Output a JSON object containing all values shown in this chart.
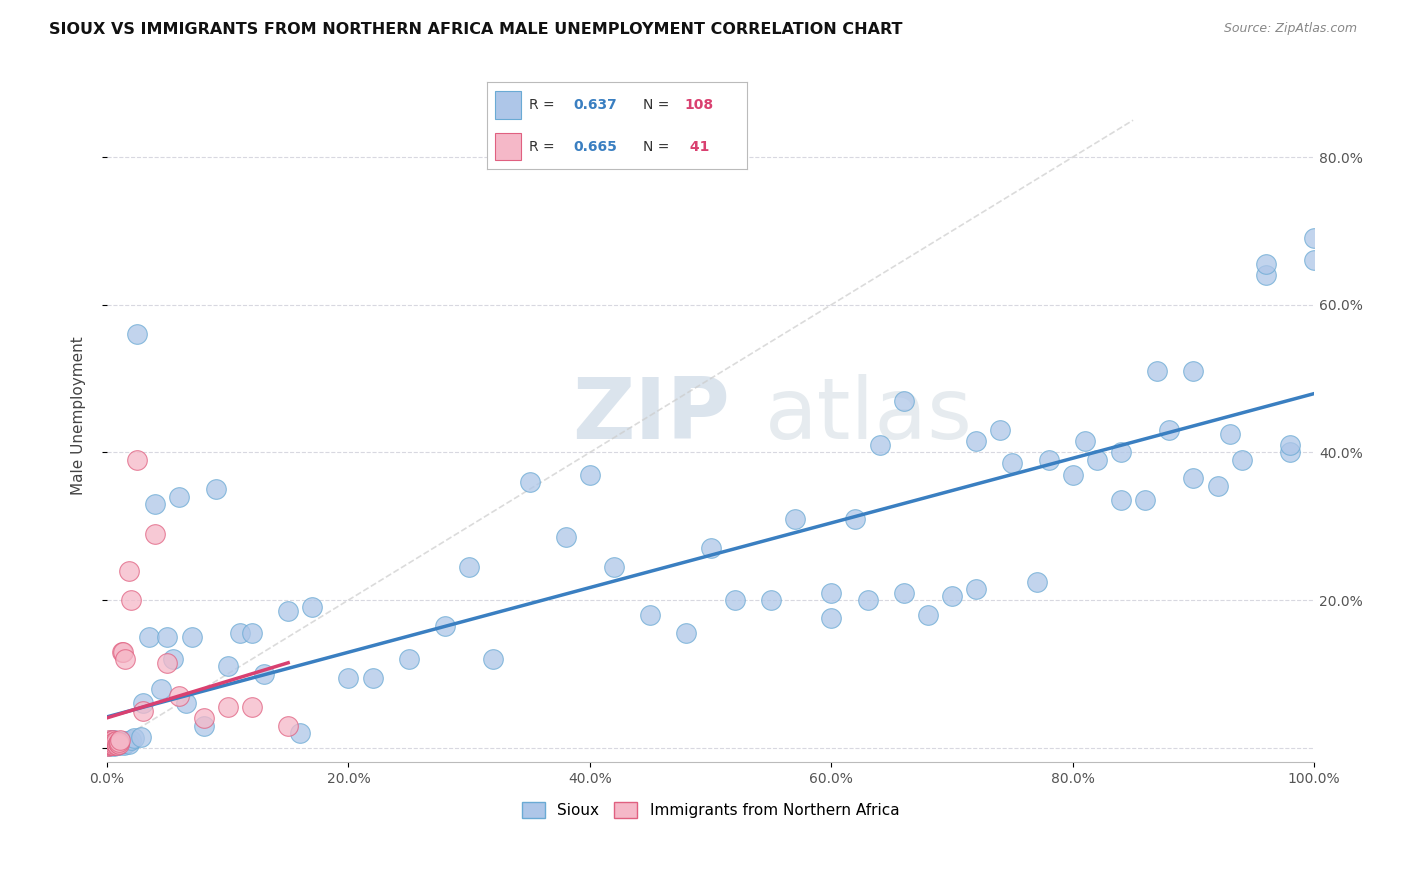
{
  "title": "SIOUX VS IMMIGRANTS FROM NORTHERN AFRICA MALE UNEMPLOYMENT CORRELATION CHART",
  "source": "Source: ZipAtlas.com",
  "ylabel": "Male Unemployment",
  "xlim": [
    0,
    1.0
  ],
  "ylim": [
    -0.02,
    0.92
  ],
  "color_sioux_fill": "#aec6e8",
  "color_sioux_edge": "#6aaad4",
  "color_immig_fill": "#f5b8c8",
  "color_immig_edge": "#e06080",
  "color_line_sioux": "#3a7fc1",
  "color_line_immig": "#d94070",
  "color_diag": "#cccccc",
  "watermark_color": "#d0dce8",
  "background_color": "#ffffff",
  "grid_color": "#d8d8e0",
  "sioux_x": [
    0.001,
    0.001,
    0.001,
    0.002,
    0.002,
    0.002,
    0.002,
    0.003,
    0.003,
    0.003,
    0.003,
    0.004,
    0.004,
    0.004,
    0.005,
    0.005,
    0.005,
    0.006,
    0.006,
    0.006,
    0.007,
    0.007,
    0.008,
    0.008,
    0.009,
    0.009,
    0.01,
    0.01,
    0.011,
    0.012,
    0.013,
    0.014,
    0.015,
    0.016,
    0.017,
    0.018,
    0.02,
    0.022,
    0.025,
    0.028,
    0.03,
    0.035,
    0.04,
    0.045,
    0.05,
    0.055,
    0.06,
    0.065,
    0.07,
    0.08,
    0.09,
    0.1,
    0.11,
    0.12,
    0.13,
    0.15,
    0.16,
    0.17,
    0.2,
    0.22,
    0.25,
    0.28,
    0.3,
    0.32,
    0.35,
    0.38,
    0.4,
    0.42,
    0.45,
    0.48,
    0.5,
    0.52,
    0.55,
    0.57,
    0.6,
    0.62,
    0.64,
    0.66,
    0.68,
    0.7,
    0.72,
    0.75,
    0.77,
    0.8,
    0.82,
    0.84,
    0.86,
    0.88,
    0.9,
    0.92,
    0.94,
    0.96,
    0.98,
    1.0,
    0.72,
    0.74,
    0.78,
    0.81,
    0.84,
    0.87,
    0.9,
    0.93,
    0.96,
    0.98,
    1.0,
    0.6,
    0.63,
    0.66
  ],
  "sioux_y": [
    0.005,
    0.003,
    0.008,
    0.004,
    0.006,
    0.009,
    0.002,
    0.005,
    0.007,
    0.01,
    0.003,
    0.006,
    0.008,
    0.004,
    0.007,
    0.003,
    0.009,
    0.005,
    0.01,
    0.002,
    0.006,
    0.008,
    0.004,
    0.007,
    0.005,
    0.009,
    0.003,
    0.008,
    0.006,
    0.005,
    0.007,
    0.004,
    0.009,
    0.006,
    0.008,
    0.005,
    0.01,
    0.013,
    0.56,
    0.015,
    0.06,
    0.15,
    0.33,
    0.08,
    0.15,
    0.12,
    0.34,
    0.06,
    0.15,
    0.03,
    0.35,
    0.11,
    0.155,
    0.155,
    0.1,
    0.185,
    0.02,
    0.19,
    0.095,
    0.095,
    0.12,
    0.165,
    0.245,
    0.12,
    0.36,
    0.285,
    0.37,
    0.245,
    0.18,
    0.155,
    0.27,
    0.2,
    0.2,
    0.31,
    0.175,
    0.31,
    0.41,
    0.21,
    0.18,
    0.205,
    0.215,
    0.385,
    0.225,
    0.37,
    0.39,
    0.4,
    0.335,
    0.43,
    0.51,
    0.355,
    0.39,
    0.64,
    0.4,
    0.69,
    0.415,
    0.43,
    0.39,
    0.415,
    0.335,
    0.51,
    0.365,
    0.425,
    0.655,
    0.41,
    0.66,
    0.21,
    0.2,
    0.47
  ],
  "immig_x": [
    0.001,
    0.001,
    0.001,
    0.001,
    0.002,
    0.002,
    0.002,
    0.002,
    0.003,
    0.003,
    0.003,
    0.003,
    0.004,
    0.004,
    0.004,
    0.005,
    0.005,
    0.005,
    0.006,
    0.006,
    0.007,
    0.007,
    0.008,
    0.009,
    0.01,
    0.01,
    0.011,
    0.012,
    0.013,
    0.015,
    0.018,
    0.02,
    0.025,
    0.03,
    0.04,
    0.05,
    0.06,
    0.08,
    0.1,
    0.12,
    0.15
  ],
  "immig_y": [
    0.003,
    0.005,
    0.007,
    0.002,
    0.004,
    0.006,
    0.008,
    0.01,
    0.005,
    0.007,
    0.009,
    0.003,
    0.006,
    0.008,
    0.004,
    0.007,
    0.003,
    0.01,
    0.005,
    0.008,
    0.006,
    0.009,
    0.004,
    0.007,
    0.005,
    0.008,
    0.01,
    0.13,
    0.13,
    0.12,
    0.24,
    0.2,
    0.39,
    0.05,
    0.29,
    0.115,
    0.07,
    0.04,
    0.055,
    0.055,
    0.03
  ]
}
